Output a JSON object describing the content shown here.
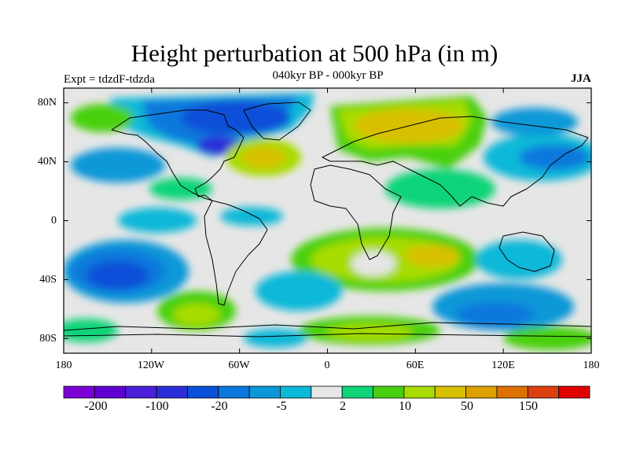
{
  "title": "Height perturbation at 500 hPa (in m)",
  "subtitle": "040kyr BP - 000kyr BP",
  "experiment": "Expt = tdzdF-tdzda",
  "season": "JJA",
  "map": {
    "projection": "cylindrical equidistant",
    "variable": "500 hPa geopotential height perturbation",
    "units": "m",
    "lat_labels": [
      "80N",
      "40N",
      "0",
      "40S",
      "80S"
    ],
    "lon_labels": [
      "180",
      "120W",
      "60W",
      "0",
      "60E",
      "120E",
      "180"
    ]
  },
  "colorbar": {
    "colors": [
      "#7a00d6",
      "#5f00d0",
      "#4a20d8",
      "#2a2ed8",
      "#0a50d8",
      "#0a78dc",
      "#0a98d8",
      "#0ab8d8",
      "#e6e6e6",
      "#10d478",
      "#48d010",
      "#a8dc00",
      "#d8c000",
      "#dca000",
      "#dc7000",
      "#dc4010",
      "#e00000"
    ],
    "labels": [
      "-200",
      "-100",
      "-20",
      "-5",
      "2",
      "10",
      "50",
      "150"
    ]
  }
}
